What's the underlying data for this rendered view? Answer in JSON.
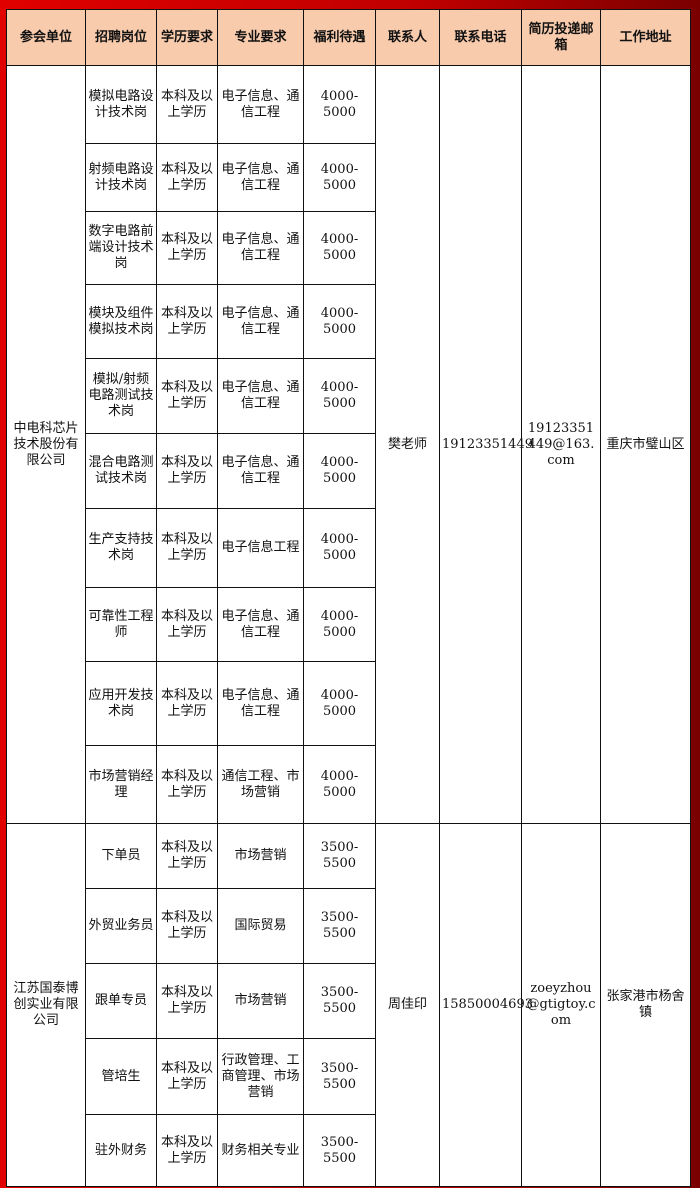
{
  "headers": [
    "参会单位",
    "招聘岗位",
    "学历要求",
    "专业要求",
    "福利待遇",
    "联系人",
    "联系电话",
    "简历投递邮箱",
    "工作地址"
  ],
  "colors": {
    "header_bg": "#f8cbad",
    "frame": "#e00000"
  },
  "companies": [
    {
      "name": "中电科芯片技术股份有限公司",
      "contact": "樊老师",
      "phone": "19123351449",
      "email": "19123351449@163.com",
      "address": "重庆市璧山区",
      "jobs": [
        {
          "title": "模拟电路设计技术岗",
          "edu": "本科及以上学历",
          "major": "电子信息、通信工程",
          "salary": "4000-5000"
        },
        {
          "title": "射频电路设计技术岗",
          "edu": "本科及以上学历",
          "major": "电子信息、通信工程",
          "salary": "4000-5000"
        },
        {
          "title": "数字电路前端设计技术岗",
          "edu": "本科及以上学历",
          "major": "电子信息、通信工程",
          "salary": "4000-5000"
        },
        {
          "title": "模块及组件模拟技术岗",
          "edu": "本科及以上学历",
          "major": "电子信息、通信工程",
          "salary": "4000-5000"
        },
        {
          "title": "模拟/射频电路测试技术岗",
          "edu": "本科及以上学历",
          "major": "电子信息、通信工程",
          "salary": "4000-5000"
        },
        {
          "title": "混合电路测试技术岗",
          "edu": "本科及以上学历",
          "major": "电子信息、通信工程",
          "salary": "4000-5000"
        },
        {
          "title": "生产支持技术岗",
          "edu": "本科及以上学历",
          "major": "电子信息工程",
          "salary": "4000-5000"
        },
        {
          "title": "可靠性工程师",
          "edu": "本科及以上学历",
          "major": "电子信息、通信工程",
          "salary": "4000-5000"
        },
        {
          "title": "应用开发技术岗",
          "edu": "本科及以上学历",
          "major": "电子信息、通信工程",
          "salary": "4000-5000"
        },
        {
          "title": "市场营销经理",
          "edu": "本科及以上学历",
          "major": "通信工程、市场营销",
          "salary": "4000-5000"
        }
      ]
    },
    {
      "name": "江苏国泰博创实业有限公司",
      "contact": "周佳印",
      "phone": "15850004693",
      "email": "zoeyzhou@gtigtoy.com",
      "address": "张家港市杨舍镇",
      "jobs": [
        {
          "title": "下单员",
          "edu": "本科及以上学历",
          "major": "市场营销",
          "salary": "3500-5500"
        },
        {
          "title": "外贸业务员",
          "edu": "本科及以上学历",
          "major": "国际贸易",
          "salary": "3500-5500"
        },
        {
          "title": "跟单专员",
          "edu": "本科及以上学历",
          "major": "市场营销",
          "salary": "3500-5500"
        },
        {
          "title": "管培生",
          "edu": "本科及以上学历",
          "major": "行政管理、工商管理、市场营销",
          "salary": "3500-5500"
        },
        {
          "title": "驻外财务",
          "edu": "本科及以上学历",
          "major": "财务相关专业",
          "salary": "3500-5500"
        }
      ]
    }
  ]
}
